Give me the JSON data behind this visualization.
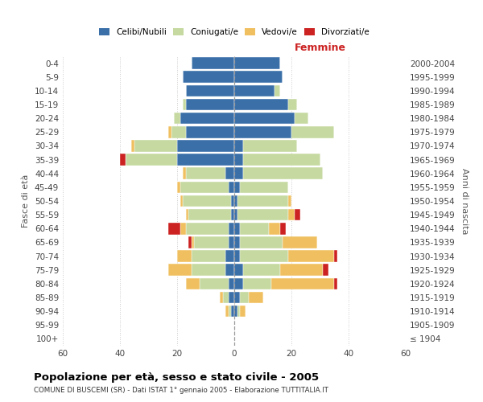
{
  "age_groups": [
    "100+",
    "95-99",
    "90-94",
    "85-89",
    "80-84",
    "75-79",
    "70-74",
    "65-69",
    "60-64",
    "55-59",
    "50-54",
    "45-49",
    "40-44",
    "35-39",
    "30-34",
    "25-29",
    "20-24",
    "15-19",
    "10-14",
    "5-9",
    "0-4"
  ],
  "birth_years": [
    "≤ 1904",
    "1905-1909",
    "1910-1914",
    "1915-1919",
    "1920-1924",
    "1925-1929",
    "1930-1934",
    "1935-1939",
    "1940-1944",
    "1945-1949",
    "1950-1954",
    "1955-1959",
    "1960-1964",
    "1965-1969",
    "1970-1974",
    "1975-1979",
    "1980-1984",
    "1985-1989",
    "1990-1994",
    "1995-1999",
    "2000-2004"
  ],
  "male_celibi": [
    0,
    0,
    1,
    2,
    2,
    3,
    3,
    2,
    2,
    1,
    1,
    2,
    3,
    20,
    20,
    17,
    19,
    17,
    17,
    18,
    15
  ],
  "male_coniugati": [
    0,
    0,
    1,
    2,
    10,
    12,
    12,
    12,
    15,
    15,
    17,
    17,
    14,
    18,
    15,
    5,
    2,
    1,
    0,
    0,
    0
  ],
  "male_vedovi": [
    0,
    0,
    1,
    1,
    5,
    8,
    5,
    1,
    2,
    1,
    1,
    1,
    1,
    0,
    1,
    1,
    0,
    0,
    0,
    0,
    0
  ],
  "male_divorziati": [
    0,
    0,
    0,
    0,
    0,
    0,
    0,
    1,
    4,
    0,
    0,
    0,
    0,
    2,
    0,
    0,
    0,
    0,
    0,
    0,
    0
  ],
  "female_celibi": [
    0,
    0,
    1,
    2,
    3,
    3,
    2,
    2,
    2,
    1,
    1,
    2,
    3,
    3,
    3,
    20,
    21,
    19,
    14,
    17,
    16
  ],
  "female_coniugati": [
    0,
    0,
    1,
    3,
    10,
    13,
    17,
    15,
    10,
    18,
    18,
    17,
    28,
    27,
    19,
    15,
    5,
    3,
    2,
    0,
    0
  ],
  "female_vedovi": [
    0,
    0,
    2,
    5,
    22,
    15,
    16,
    12,
    4,
    2,
    1,
    0,
    0,
    0,
    0,
    0,
    0,
    0,
    0,
    0,
    0
  ],
  "female_divorziati": [
    0,
    0,
    0,
    0,
    1,
    2,
    1,
    0,
    2,
    2,
    0,
    0,
    0,
    0,
    0,
    0,
    0,
    0,
    0,
    0,
    0
  ],
  "colors": {
    "celibi": "#3a6fa8",
    "coniugati": "#c5d9a0",
    "vedovi": "#f0c060",
    "divorziati": "#cc2222"
  },
  "title": "Popolazione per età, sesso e stato civile - 2005",
  "subtitle": "COMUNE DI BUSCEMI (SR) - Dati ISTAT 1° gennaio 2005 - Elaborazione TUTTITALIA.IT",
  "ylabel_left": "Fasce di età",
  "ylabel_right": "Anni di nascita",
  "xlabel_right": "Femmine",
  "xlim": 60,
  "background_color": "#ffffff",
  "grid_color": "#cccccc"
}
